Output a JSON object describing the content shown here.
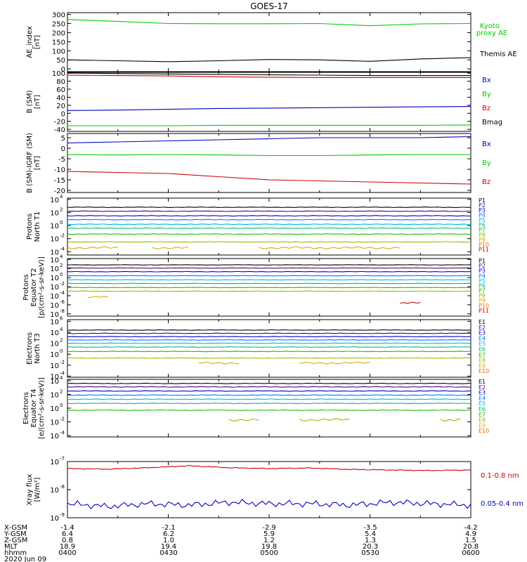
{
  "title": "GOES-17",
  "colors": {
    "black": "#000000",
    "green": "#00cc00",
    "blue": "#0000c8",
    "red": "#d00000",
    "P1": "#000000",
    "P2": "#4b0082",
    "P3": "#0000cc",
    "P4": "#0077ff",
    "P5": "#00bbdd",
    "P6": "#00bb77",
    "P7": "#22bb00",
    "P8": "#99bb00",
    "P9": "#ddaa00",
    "P10": "#ee6600",
    "P11": "#cc0000"
  },
  "footer": {
    "row_labels": [
      "X-GSM",
      "Y-GSM",
      "Z-GSM",
      "MLT",
      "hhmm"
    ],
    "date": "2020 Jun 09",
    "columns": [
      {
        "x": "-1.4",
        "y": "6.4",
        "z": "0.8",
        "mlt": "18.9",
        "hhmm": "0400"
      },
      {
        "x": "-2.1",
        "y": "6.2",
        "z": "1.0",
        "mlt": "19.4",
        "hhmm": "0430"
      },
      {
        "x": "-2.9",
        "y": "5.9",
        "z": "1.2",
        "mlt": "19.8",
        "hhmm": "0500"
      },
      {
        "x": "-3.5",
        "y": "5.4",
        "z": "1.3",
        "mlt": "20.3",
        "hhmm": "0530"
      },
      {
        "x": "-4.2",
        "y": "4.9",
        "z": "1.5",
        "mlt": "20.8",
        "hhmm": "0600"
      }
    ]
  },
  "chart_data": [
    {
      "type": "line",
      "scale": "linear",
      "ylabel": [
        "AE_index",
        "[nT]"
      ],
      "ylim": [
        -15,
        310
      ],
      "yticks": [
        0,
        50,
        100,
        150,
        200,
        250,
        300
      ],
      "x_hours": [
        4.0,
        4.25,
        4.5,
        4.75,
        5.0,
        5.25,
        5.5,
        5.75,
        6.0
      ],
      "series": [
        {
          "name": "Kyoto\nproxy AE",
          "color": "green",
          "values": [
            272,
            262,
            250,
            249,
            249,
            250,
            238,
            248,
            250
          ]
        },
        {
          "name": "Themis AE",
          "color": "black",
          "values": [
            50,
            45,
            40,
            45,
            52,
            50,
            42,
            55,
            62
          ]
        }
      ]
    },
    {
      "type": "line",
      "scale": "linear",
      "ylabel": [
        "B (SM)",
        "[nT]"
      ],
      "ylim": [
        -45,
        102
      ],
      "yticks": [
        -40,
        -20,
        0,
        20,
        40,
        60,
        80,
        100
      ],
      "x_hours": [
        4.0,
        4.25,
        4.5,
        4.75,
        5.0,
        5.25,
        5.5,
        5.75,
        6.0
      ],
      "series": [
        {
          "name": "Bx",
          "color": "blue",
          "values": [
            7,
            8,
            10,
            12,
            13,
            14,
            15,
            16,
            17
          ]
        },
        {
          "name": "By",
          "color": "green",
          "values": [
            -31,
            -31,
            -31,
            -30,
            -30,
            -30,
            -30,
            -30,
            -29
          ]
        },
        {
          "name": "Bz",
          "color": "red",
          "values": [
            95,
            94,
            93,
            91,
            90,
            89,
            89,
            89,
            89
          ]
        },
        {
          "name": "Bmag",
          "color": "black",
          "values": [
            100,
            99,
            98,
            97,
            96,
            95,
            94,
            94,
            94
          ]
        }
      ]
    },
    {
      "type": "line",
      "scale": "linear",
      "ylabel": [
        "B (SM)-IGRF (SM)",
        "[nT]"
      ],
      "ylim": [
        -21,
        7
      ],
      "yticks": [
        -20,
        -15,
        -10,
        -5,
        0,
        5
      ],
      "x_hours": [
        4.0,
        4.25,
        4.5,
        4.75,
        5.0,
        5.25,
        5.5,
        5.75,
        6.0
      ],
      "series": [
        {
          "name": "Bx",
          "color": "blue",
          "values": [
            2.5,
            3.0,
            3.5,
            4.0,
            4.5,
            5.0,
            5.0,
            5.0,
            5.5
          ]
        },
        {
          "name": "By",
          "color": "green",
          "values": [
            -3.0,
            -3.2,
            -3.0,
            -3.2,
            -3.5,
            -3.5,
            -3.2,
            -3.0,
            -3.0
          ]
        },
        {
          "name": "Bz",
          "color": "red",
          "values": [
            -11.0,
            -11.5,
            -12.0,
            -13.5,
            -15.0,
            -15.5,
            -16.0,
            -16.5,
            -17.0
          ]
        }
      ]
    },
    {
      "type": "line",
      "scale": "log",
      "ylabel": [
        "Protons",
        "North T1"
      ],
      "ylim": [
        -4.5,
        4.2
      ],
      "yticks": [
        -4,
        -2,
        0,
        2,
        4
      ],
      "legend": [
        "P1",
        "P2",
        "P3",
        "P4",
        "P5",
        "P6",
        "P7",
        "P8",
        "P9",
        "P10",
        "P11"
      ],
      "series": [
        {
          "name": "P1",
          "log_level": 2.8
        },
        {
          "name": "P2",
          "log_level": 2.2
        },
        {
          "name": "P3",
          "log_level": 1.5
        },
        {
          "name": "P4",
          "log_level": 0.9
        },
        {
          "name": "P5",
          "log_level": 0.2
        },
        {
          "name": "P6",
          "log_level": -0.4
        },
        {
          "name": "P7",
          "log_level": -1.3
        },
        {
          "name": "P8",
          "log_level": -2.5
        },
        {
          "name": "P9",
          "log_level": -3.4,
          "segments": [
            [
              4.0,
              4.25
            ],
            [
              4.42,
              4.6
            ],
            [
              4.95,
              5.65
            ]
          ]
        }
      ]
    },
    {
      "type": "line",
      "scale": "log",
      "ylabel": [
        "Protons",
        "Equator T2",
        "[p/(cm²-s-sr-keV)]"
      ],
      "ylim": [
        -8.5,
        4.2
      ],
      "yticks": [
        -8,
        -6,
        -4,
        -2,
        0,
        2,
        4
      ],
      "legend": [
        "P1",
        "P2",
        "P3",
        "P4",
        "P5",
        "P6",
        "P7",
        "P8",
        "P9",
        "P10",
        "P11"
      ],
      "series": [
        {
          "name": "P1",
          "log_level": 2.8
        },
        {
          "name": "P2",
          "log_level": 2.1
        },
        {
          "name": "P3",
          "log_level": 1.3
        },
        {
          "name": "P4",
          "log_level": 0.4
        },
        {
          "name": "P5",
          "log_level": -0.5
        },
        {
          "name": "P6",
          "log_level": -1.3
        },
        {
          "name": "P7",
          "log_level": -2.2
        },
        {
          "name": "P8",
          "log_level": -3.0
        },
        {
          "name": "P9",
          "log_level": -4.3,
          "segments": [
            [
              4.1,
              4.2
            ]
          ]
        },
        {
          "name": "P11",
          "log_level": -5.6,
          "segments": [
            [
              5.65,
              5.75
            ]
          ]
        }
      ]
    },
    {
      "type": "line",
      "scale": "log",
      "ylabel": [
        "Electrons",
        "North T3"
      ],
      "ylim": [
        -4.2,
        6.3
      ],
      "yticks": [
        -4,
        -2,
        0,
        2,
        4,
        6
      ],
      "legend": [
        "E1",
        "E2",
        "E3",
        "E4",
        "E5",
        "E6",
        "E7",
        "E8",
        "E9",
        "E10"
      ],
      "series": [
        {
          "name": "E1",
          "log_level": 4.4
        },
        {
          "name": "E2",
          "log_level": 3.8
        },
        {
          "name": "E3",
          "log_level": 3.2
        },
        {
          "name": "E4",
          "log_level": 2.6
        },
        {
          "name": "E5",
          "log_level": 2.0
        },
        {
          "name": "E6",
          "log_level": 1.3
        },
        {
          "name": "E7",
          "log_level": 0.5
        },
        {
          "name": "E8",
          "log_level": -0.7
        },
        {
          "name": "E9",
          "log_level": -1.6,
          "segments": [
            [
              4.65,
              4.85
            ],
            [
              5.15,
              5.5
            ]
          ]
        }
      ]
    },
    {
      "type": "line",
      "scale": "log",
      "ylabel": [
        "Electrons",
        "Equator T4",
        "[e/(cm²-s-sr-keV)]"
      ],
      "ylim": [
        -4.2,
        4.2
      ],
      "yticks": [
        -4,
        -2,
        0,
        2,
        4
      ],
      "legend": [
        "E1",
        "E2",
        "E3",
        "E4",
        "E5",
        "E6",
        "E7",
        "E8",
        "E9",
        "E10"
      ],
      "series": [
        {
          "name": "E1",
          "log_level": 3.6
        },
        {
          "name": "E2",
          "log_level": 3.1
        },
        {
          "name": "E3",
          "log_level": 2.5
        },
        {
          "name": "E4",
          "log_level": 1.9
        },
        {
          "name": "E5",
          "log_level": 1.3
        },
        {
          "name": "E6",
          "log_level": 0.7
        },
        {
          "name": "E7",
          "log_level": -0.3
        },
        {
          "name": "E8",
          "log_level": -1.7,
          "segments": [
            [
              4.8,
              4.95
            ],
            [
              5.15,
              5.4
            ],
            [
              5.85,
              5.95
            ]
          ]
        }
      ]
    },
    {
      "type": "line",
      "scale": "log",
      "ylabel": [
        "Xray flux",
        "[W/m²]"
      ],
      "ylim": [
        -9,
        -7
      ],
      "yticks": [
        -9,
        -8,
        -7
      ],
      "x_hours": [
        4.0,
        4.2,
        4.4,
        4.6,
        4.8,
        5.0,
        5.2,
        5.4,
        5.6,
        5.8,
        6.0
      ],
      "series": [
        {
          "name": "0.1-0.8 nm",
          "color": "red",
          "values_log": [
            -7.25,
            -7.27,
            -7.22,
            -7.15,
            -7.22,
            -7.25,
            -7.23,
            -7.28,
            -7.3,
            -7.32,
            -7.3
          ]
        },
        {
          "name": "0.05-0.4 nm",
          "color": "blue",
          "values_log": [
            -8.5,
            -8.6,
            -8.5,
            -8.55,
            -8.45,
            -8.5,
            -8.5,
            -8.55,
            -8.45,
            -8.5,
            -8.55
          ]
        }
      ]
    }
  ]
}
